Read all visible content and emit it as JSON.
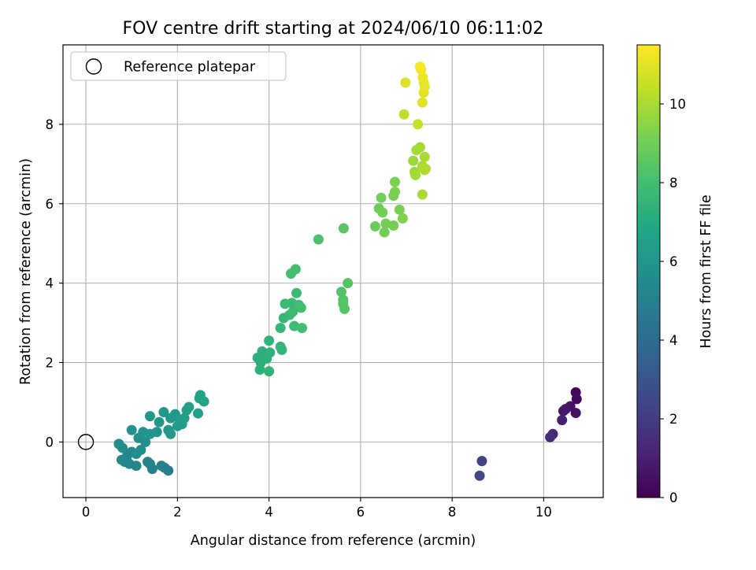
{
  "chart_data": {
    "type": "scatter",
    "title": "FOV centre drift starting at 2024/06/10 06:11:02",
    "xlabel": "Angular distance from reference (arcmin)",
    "ylabel": "Rotation from reference (arcmin)",
    "xlim": [
      -0.5,
      11.3
    ],
    "ylim": [
      -1.4,
      10.0
    ],
    "xticks": [
      "0",
      "2",
      "4",
      "6",
      "8",
      "10"
    ],
    "yticks": [
      "0",
      "2",
      "4",
      "6",
      "8"
    ],
    "grid": true,
    "legend": {
      "placement": "upper-left",
      "entries": [
        "Reference platepar"
      ]
    },
    "reference_point": {
      "x": 0,
      "y": 0
    },
    "colorbar": {
      "label": "Hours from first FF file",
      "range": [
        0,
        11.5
      ],
      "ticks": [
        "0",
        "2",
        "4",
        "6",
        "8",
        "10"
      ],
      "colormap": "viridis"
    },
    "series": [
      {
        "points": [
          {
            "x": 10.7,
            "y": 1.25,
            "c": 0.2
          },
          {
            "x": 10.72,
            "y": 1.08,
            "c": 0.3
          },
          {
            "x": 10.7,
            "y": 0.73,
            "c": 0.5
          },
          {
            "x": 10.58,
            "y": 0.9,
            "c": 0.6
          },
          {
            "x": 10.48,
            "y": 0.83,
            "c": 0.7
          },
          {
            "x": 10.43,
            "y": 0.78,
            "c": 0.8
          },
          {
            "x": 10.4,
            "y": 0.55,
            "c": 1.0
          },
          {
            "x": 10.2,
            "y": 0.2,
            "c": 1.3
          },
          {
            "x": 10.14,
            "y": 0.12,
            "c": 1.4
          },
          {
            "x": 8.65,
            "y": -0.48,
            "c": 2.3
          },
          {
            "x": 8.6,
            "y": -0.85,
            "c": 2.5
          },
          {
            "x": 1.8,
            "y": -0.72,
            "c": 4.8
          },
          {
            "x": 1.72,
            "y": -0.65,
            "c": 4.9
          },
          {
            "x": 1.65,
            "y": -0.6,
            "c": 5.0
          },
          {
            "x": 1.45,
            "y": -0.68,
            "c": 5.0
          },
          {
            "x": 1.4,
            "y": -0.55,
            "c": 5.1
          },
          {
            "x": 1.35,
            "y": -0.5,
            "c": 5.1
          },
          {
            "x": 1.1,
            "y": -0.6,
            "c": 5.2
          },
          {
            "x": 0.95,
            "y": -0.55,
            "c": 5.2
          },
          {
            "x": 0.85,
            "y": -0.5,
            "c": 5.3
          },
          {
            "x": 0.78,
            "y": -0.45,
            "c": 5.3
          },
          {
            "x": 0.9,
            "y": -0.35,
            "c": 5.4
          },
          {
            "x": 1.0,
            "y": -0.25,
            "c": 5.4
          },
          {
            "x": 0.72,
            "y": -0.05,
            "c": 5.5
          },
          {
            "x": 0.8,
            "y": -0.15,
            "c": 5.5
          },
          {
            "x": 1.1,
            "y": -0.3,
            "c": 5.6
          },
          {
            "x": 1.2,
            "y": -0.2,
            "c": 5.6
          },
          {
            "x": 1.3,
            "y": 0.0,
            "c": 5.7
          },
          {
            "x": 1.15,
            "y": 0.1,
            "c": 5.7
          },
          {
            "x": 1.0,
            "y": 0.3,
            "c": 5.8
          },
          {
            "x": 1.25,
            "y": 0.25,
            "c": 5.8
          },
          {
            "x": 1.4,
            "y": 0.2,
            "c": 5.9
          },
          {
            "x": 1.55,
            "y": 0.25,
            "c": 5.9
          },
          {
            "x": 1.4,
            "y": 0.65,
            "c": 6.0
          },
          {
            "x": 1.6,
            "y": 0.5,
            "c": 6.0
          },
          {
            "x": 1.7,
            "y": 0.75,
            "c": 6.1
          },
          {
            "x": 1.85,
            "y": 0.6,
            "c": 6.1
          },
          {
            "x": 1.8,
            "y": 0.3,
            "c": 6.1
          },
          {
            "x": 1.85,
            "y": 0.2,
            "c": 6.2
          },
          {
            "x": 1.95,
            "y": 0.7,
            "c": 6.2
          },
          {
            "x": 2.05,
            "y": 0.55,
            "c": 6.3
          },
          {
            "x": 2.0,
            "y": 0.4,
            "c": 6.3
          },
          {
            "x": 2.1,
            "y": 0.45,
            "c": 6.3
          },
          {
            "x": 2.15,
            "y": 0.6,
            "c": 6.4
          },
          {
            "x": 2.2,
            "y": 0.8,
            "c": 6.4
          },
          {
            "x": 2.25,
            "y": 0.88,
            "c": 6.5
          },
          {
            "x": 2.45,
            "y": 0.72,
            "c": 6.5
          },
          {
            "x": 2.48,
            "y": 1.1,
            "c": 6.6
          },
          {
            "x": 2.5,
            "y": 1.18,
            "c": 6.6
          },
          {
            "x": 2.58,
            "y": 1.02,
            "c": 6.7
          },
          {
            "x": 3.75,
            "y": 2.12,
            "c": 7.2
          },
          {
            "x": 3.82,
            "y": 2.0,
            "c": 7.2
          },
          {
            "x": 3.85,
            "y": 2.28,
            "c": 7.3
          },
          {
            "x": 3.8,
            "y": 1.82,
            "c": 7.3
          },
          {
            "x": 3.95,
            "y": 2.1,
            "c": 7.3
          },
          {
            "x": 4.0,
            "y": 1.78,
            "c": 7.4
          },
          {
            "x": 4.02,
            "y": 2.25,
            "c": 7.4
          },
          {
            "x": 4.0,
            "y": 2.55,
            "c": 7.4
          },
          {
            "x": 4.25,
            "y": 2.4,
            "c": 7.5
          },
          {
            "x": 4.28,
            "y": 2.32,
            "c": 7.5
          },
          {
            "x": 4.25,
            "y": 2.87,
            "c": 7.6
          },
          {
            "x": 4.32,
            "y": 3.12,
            "c": 7.6
          },
          {
            "x": 4.35,
            "y": 3.48,
            "c": 7.7
          },
          {
            "x": 4.45,
            "y": 3.2,
            "c": 7.7
          },
          {
            "x": 4.5,
            "y": 3.5,
            "c": 7.7
          },
          {
            "x": 4.52,
            "y": 3.28,
            "c": 7.8
          },
          {
            "x": 4.55,
            "y": 2.92,
            "c": 7.8
          },
          {
            "x": 4.6,
            "y": 3.75,
            "c": 7.8
          },
          {
            "x": 4.65,
            "y": 3.45,
            "c": 7.9
          },
          {
            "x": 4.7,
            "y": 3.38,
            "c": 7.9
          },
          {
            "x": 4.72,
            "y": 2.87,
            "c": 7.9
          },
          {
            "x": 4.48,
            "y": 4.24,
            "c": 8.0
          },
          {
            "x": 4.58,
            "y": 4.35,
            "c": 8.0
          },
          {
            "x": 5.08,
            "y": 5.1,
            "c": 8.2
          },
          {
            "x": 5.58,
            "y": 3.78,
            "c": 8.3
          },
          {
            "x": 5.62,
            "y": 3.58,
            "c": 8.3
          },
          {
            "x": 5.65,
            "y": 3.35,
            "c": 8.4
          },
          {
            "x": 5.62,
            "y": 3.48,
            "c": 8.4
          },
          {
            "x": 5.72,
            "y": 4.0,
            "c": 8.4
          },
          {
            "x": 5.63,
            "y": 5.38,
            "c": 8.5
          },
          {
            "x": 6.32,
            "y": 5.43,
            "c": 8.9
          },
          {
            "x": 6.4,
            "y": 5.88,
            "c": 8.9
          },
          {
            "x": 6.45,
            "y": 6.15,
            "c": 9.0
          },
          {
            "x": 6.48,
            "y": 5.78,
            "c": 9.0
          },
          {
            "x": 6.52,
            "y": 5.28,
            "c": 9.0
          },
          {
            "x": 6.55,
            "y": 5.5,
            "c": 9.1
          },
          {
            "x": 6.72,
            "y": 5.45,
            "c": 9.1
          },
          {
            "x": 6.72,
            "y": 6.2,
            "c": 9.1
          },
          {
            "x": 6.75,
            "y": 6.3,
            "c": 9.2
          },
          {
            "x": 6.75,
            "y": 6.55,
            "c": 9.2
          },
          {
            "x": 6.85,
            "y": 5.85,
            "c": 9.2
          },
          {
            "x": 6.92,
            "y": 5.63,
            "c": 9.3
          },
          {
            "x": 7.15,
            "y": 7.08,
            "c": 9.8
          },
          {
            "x": 7.18,
            "y": 6.8,
            "c": 9.8
          },
          {
            "x": 7.2,
            "y": 6.72,
            "c": 9.9
          },
          {
            "x": 7.22,
            "y": 7.35,
            "c": 9.9
          },
          {
            "x": 7.3,
            "y": 7.42,
            "c": 9.9
          },
          {
            "x": 7.35,
            "y": 6.23,
            "c": 10.0
          },
          {
            "x": 7.35,
            "y": 6.95,
            "c": 10.0
          },
          {
            "x": 7.4,
            "y": 7.18,
            "c": 10.0
          },
          {
            "x": 7.4,
            "y": 6.85,
            "c": 10.1
          },
          {
            "x": 7.42,
            "y": 6.88,
            "c": 10.1
          },
          {
            "x": 6.95,
            "y": 8.25,
            "c": 10.4
          },
          {
            "x": 7.25,
            "y": 8.0,
            "c": 10.5
          },
          {
            "x": 6.98,
            "y": 9.05,
            "c": 10.9
          },
          {
            "x": 7.35,
            "y": 8.55,
            "c": 11.0
          },
          {
            "x": 7.38,
            "y": 8.8,
            "c": 11.0
          },
          {
            "x": 7.4,
            "y": 8.95,
            "c": 11.1
          },
          {
            "x": 7.38,
            "y": 9.05,
            "c": 11.1
          },
          {
            "x": 7.36,
            "y": 9.18,
            "c": 11.2
          },
          {
            "x": 7.32,
            "y": 9.38,
            "c": 11.3
          },
          {
            "x": 7.3,
            "y": 9.45,
            "c": 11.4
          }
        ]
      }
    ]
  }
}
